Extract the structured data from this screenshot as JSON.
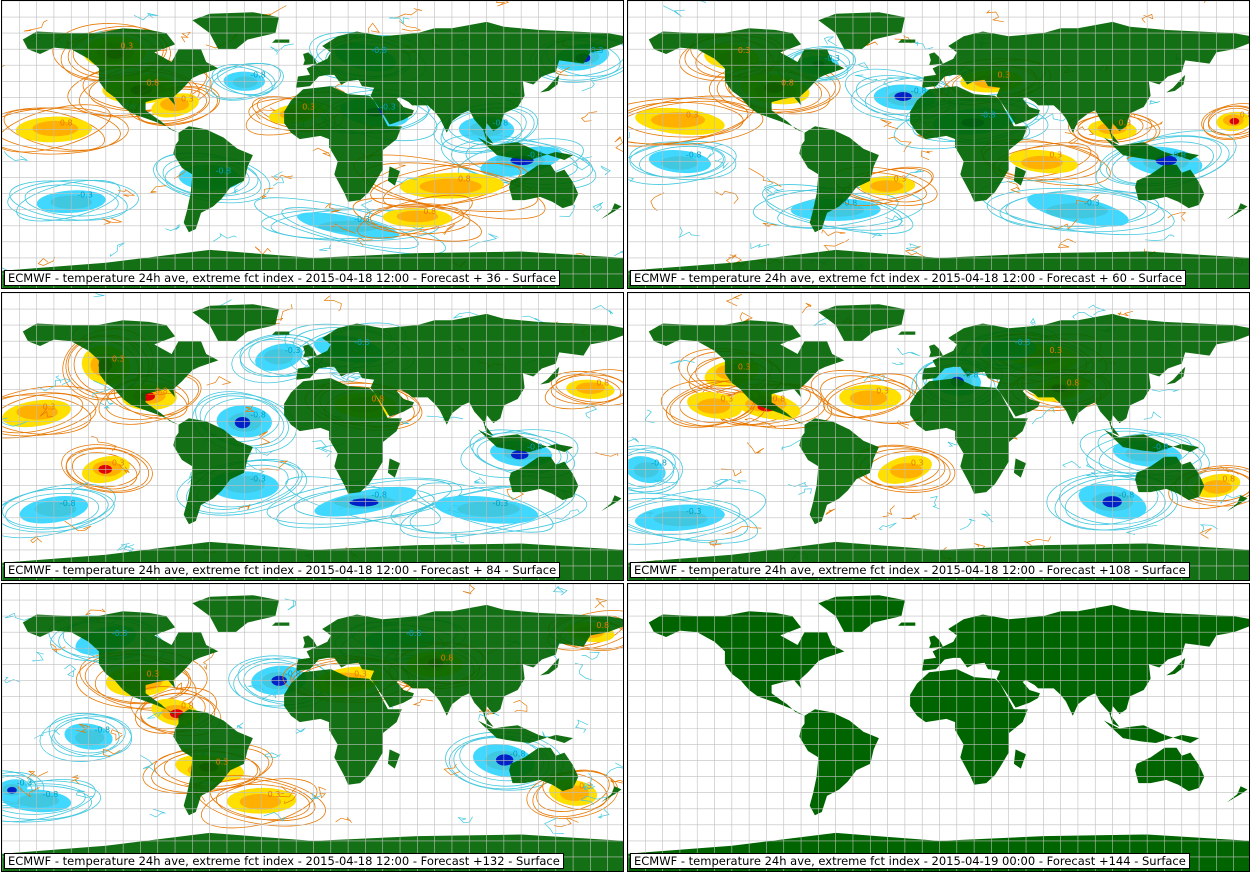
{
  "colors": {
    "land": "#006400",
    "grid": "#bfbfbf",
    "warm_contour": "#e87800",
    "warm_fill": "#ffb000",
    "warm_light": "#ffe000",
    "hot_fill": "#e00000",
    "cold_contour": "#40c8e0",
    "cold_fill": "#40d8ff",
    "cold_deep": "#0020c8",
    "ocean": "#ffffff"
  },
  "panels": [
    {
      "caption": "ECMWF - temperature 24h ave, extreme fct index - 2015-04-18 12:00 - Forecast + 36 - Surface",
      "has_field": true
    },
    {
      "caption": "ECMWF - temperature 24h ave, extreme fct index - 2015-04-18 12:00 - Forecast + 60 - Surface",
      "has_field": true
    },
    {
      "caption": "ECMWF - temperature 24h ave, extreme fct index - 2015-04-18 12:00 - Forecast + 84 - Surface",
      "has_field": true
    },
    {
      "caption": "ECMWF - temperature 24h ave, extreme fct index - 2015-04-18 12:00 - Forecast +108 - Surface",
      "has_field": true
    },
    {
      "caption": "ECMWF - temperature 24h ave, extreme fct index - 2015-04-18 12:00 - Forecast +132 - Surface",
      "has_field": true
    },
    {
      "caption": "ECMWF - temperature 24h ave, extreme fct index - 2015-04-19 00:00 - Forecast +144 - Surface",
      "has_field": false
    }
  ],
  "contour_labels": [
    "0.3",
    "0.8",
    "-0.3",
    "-0.8"
  ]
}
